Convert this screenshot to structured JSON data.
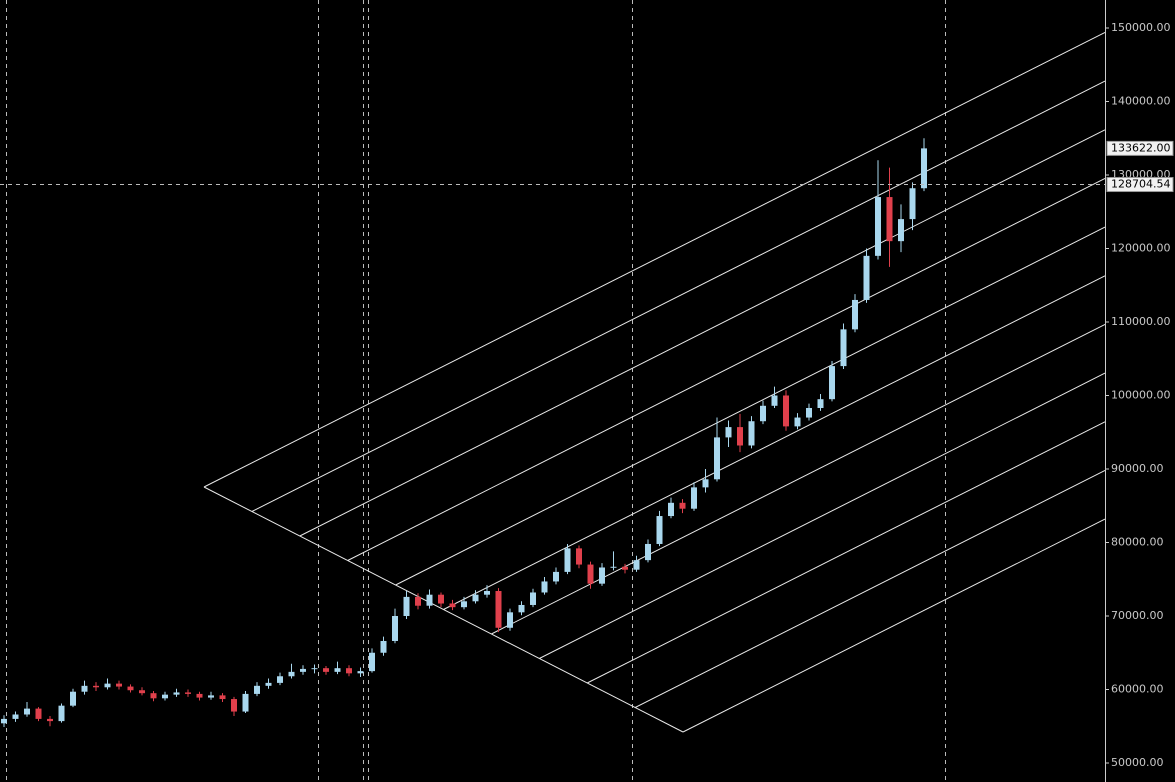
{
  "chart_data": {
    "type": "candlestick",
    "open": [
      55400,
      56000,
      56600,
      57400,
      56000,
      55700,
      57800,
      59700,
      60500,
      60300,
      60800,
      60400,
      59900,
      59500,
      58800,
      59300,
      59600,
      59400,
      58900,
      59200,
      58700,
      57000,
      59400,
      60500,
      60900,
      61800,
      62400,
      62800,
      62900,
      62400,
      62900,
      62200,
      62500,
      65000,
      66600,
      70000,
      72600,
      71400,
      72900,
      71700,
      71200,
      72000,
      72900,
      73400,
      68400,
      70500,
      71500,
      73200,
      74700,
      76000,
      79200,
      77000,
      74400,
      76600,
      76700,
      76300,
      77600,
      79800,
      83600,
      85400,
      84600,
      87500,
      88600,
      94300,
      95700,
      93200,
      96500,
      98600,
      100000,
      95800,
      97000,
      98300,
      99500,
      104000,
      109000,
      113000,
      119000,
      127000,
      121000,
      124000,
      128200
    ],
    "high": [
      56500,
      57000,
      58300,
      57600,
      56400,
      58100,
      60100,
      61200,
      61000,
      61500,
      61200,
      60700,
      60300,
      59800,
      59700,
      60100,
      60000,
      59700,
      59700,
      59500,
      59000,
      59800,
      61000,
      61500,
      62300,
      63500,
      63300,
      63400,
      63200,
      63800,
      63300,
      63000,
      65600,
      67200,
      71000,
      73400,
      73100,
      73600,
      73200,
      72200,
      72600,
      73500,
      74200,
      73800,
      71000,
      72000,
      73700,
      75300,
      76600,
      79800,
      79600,
      77400,
      77200,
      78800,
      77100,
      78200,
      80400,
      84300,
      86100,
      85900,
      88200,
      90000,
      97000,
      96600,
      97500,
      97200,
      99300,
      101200,
      100700,
      97600,
      98900,
      100200,
      104700,
      109800,
      113800,
      120000,
      132000,
      131000,
      126000,
      129000,
      135000
    ],
    "low": [
      54900,
      55600,
      56300,
      55700,
      55000,
      55500,
      57600,
      59300,
      59800,
      60000,
      60000,
      59600,
      59200,
      58400,
      58500,
      59000,
      59000,
      58500,
      58600,
      58300,
      56400,
      56800,
      59100,
      60100,
      60600,
      61500,
      62000,
      62200,
      62000,
      62100,
      61800,
      61700,
      62300,
      64600,
      66300,
      69600,
      70900,
      71000,
      71200,
      70800,
      70900,
      71700,
      72500,
      67800,
      68000,
      70100,
      71200,
      72900,
      74300,
      75700,
      76500,
      73700,
      74100,
      76200,
      75800,
      76000,
      77300,
      79500,
      83300,
      84000,
      84300,
      86800,
      88300,
      93000,
      92300,
      92800,
      96100,
      98300,
      95200,
      95400,
      96600,
      97900,
      99200,
      103600,
      108600,
      112600,
      118500,
      117500,
      119500,
      122500,
      127800
    ],
    "close": [
      56000,
      56600,
      57400,
      56000,
      55700,
      57800,
      59700,
      60500,
      60300,
      60800,
      60400,
      59900,
      59500,
      58800,
      59300,
      59600,
      59400,
      58900,
      59200,
      58700,
      57000,
      59400,
      60500,
      60900,
      61800,
      62400,
      62800,
      62900,
      62400,
      62900,
      62200,
      62500,
      65000,
      66600,
      70000,
      72600,
      71400,
      72900,
      71700,
      71200,
      72000,
      72900,
      73400,
      68400,
      70500,
      71500,
      73200,
      74700,
      76000,
      79200,
      77000,
      74400,
      76600,
      76700,
      76300,
      77600,
      79800,
      83600,
      85400,
      84600,
      87500,
      88600,
      94300,
      95700,
      93200,
      96500,
      98600,
      100000,
      95800,
      97000,
      98300,
      99500,
      104000,
      109000,
      113000,
      119000,
      127000,
      121000,
      124000,
      128200,
      133622
    ],
    "up_color": "#a9d7ee",
    "down_color": "#e0404c",
    "ylim": [
      47415,
      153810
    ],
    "yticks": [
      {
        "value": 50000,
        "label": "50000.00"
      },
      {
        "value": 60000,
        "label": "60000.00"
      },
      {
        "value": 70000,
        "label": "70000.00"
      },
      {
        "value": 80000,
        "label": "80000.00"
      },
      {
        "value": 90000,
        "label": "90000.00"
      },
      {
        "value": 100000,
        "label": "100000.00"
      },
      {
        "value": 110000,
        "label": "110000.00"
      },
      {
        "value": 120000,
        "label": "120000.00"
      },
      {
        "value": 130000,
        "label": "130000.00"
      },
      {
        "value": 140000,
        "label": "140000.00"
      },
      {
        "value": 150000,
        "label": "150000.00"
      }
    ],
    "last_price": {
      "value": 133622,
      "label": "133622.00"
    },
    "crosshair": {
      "value": 128704.54,
      "label": "128704.54"
    }
  }
}
